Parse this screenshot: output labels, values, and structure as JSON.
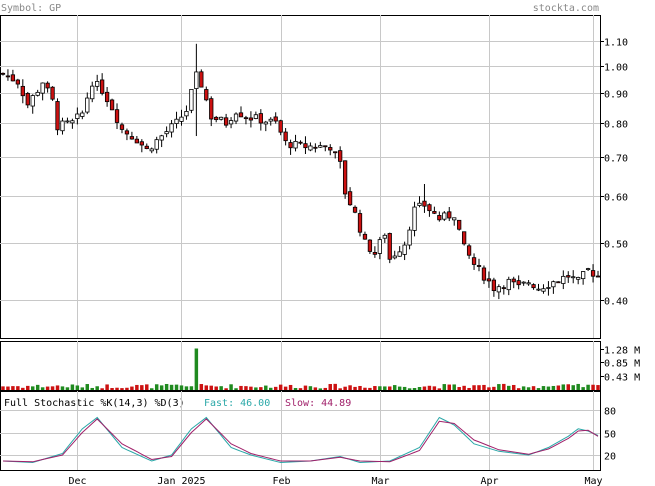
{
  "header": {
    "symbol_label": "Symbol: GP",
    "site": "stockta.com"
  },
  "colors": {
    "up": "#ffffff",
    "down": "#cc1111",
    "wick": "#000000",
    "grid": "#c8c8c8",
    "frame": "#000000",
    "vol_up": "#1f8a1f",
    "vol_down": "#cc1111",
    "fast": "#2aa8a8",
    "slow": "#a0206a",
    "header": "#888888"
  },
  "indicator": {
    "name_label": "Full Stochastic %K(14,3) %D(3)",
    "fast_label": "Fast: 46.00",
    "slow_label": "Slow: 44.89"
  },
  "chart_data": {
    "type": "candlestick",
    "price_axis": {
      "scale": "log",
      "ticks": [
        0.4,
        0.5,
        0.6,
        0.7,
        0.8,
        0.9,
        1.0,
        1.1
      ],
      "tick_labels": [
        "0.40",
        "0.50",
        "0.60",
        "0.70",
        "0.80",
        "0.90",
        "1.00",
        "1.10"
      ],
      "range": [
        0.345,
        1.22
      ]
    },
    "volume_axis": {
      "tick_labels": [
        "1.28 M",
        "0.85 M",
        "0.43 M"
      ],
      "ticks": [
        1.28,
        0.85,
        0.43
      ],
      "unit": "M",
      "max": 1.45
    },
    "stochastic_axis": {
      "tick_labels": [
        "80",
        "50",
        "20"
      ],
      "ticks": [
        80,
        50,
        20
      ],
      "range": [
        0,
        100
      ]
    },
    "month_labels": [
      "Dec",
      "Jan 2025",
      "Feb",
      "Mar",
      "Apr",
      "May"
    ],
    "month_index": [
      15,
      36,
      56,
      76,
      98,
      119
    ],
    "days": 120,
    "close_anchors": [
      [
        0,
        0.97
      ],
      [
        3,
        0.94
      ],
      [
        5,
        0.86
      ],
      [
        7,
        0.91
      ],
      [
        8,
        0.94
      ],
      [
        10,
        0.87
      ],
      [
        11,
        0.79
      ],
      [
        14,
        0.8
      ],
      [
        16,
        0.83
      ],
      [
        18,
        0.94
      ],
      [
        20,
        0.91
      ],
      [
        22,
        0.85
      ],
      [
        24,
        0.78
      ],
      [
        27,
        0.75
      ],
      [
        29,
        0.72
      ],
      [
        32,
        0.76
      ],
      [
        35,
        0.8
      ],
      [
        37,
        0.84
      ],
      [
        39,
        0.96
      ],
      [
        40,
        0.93
      ],
      [
        42,
        0.82
      ],
      [
        45,
        0.8
      ],
      [
        47,
        0.84
      ],
      [
        49,
        0.82
      ],
      [
        52,
        0.81
      ],
      [
        55,
        0.8
      ],
      [
        57,
        0.74
      ],
      [
        60,
        0.73
      ],
      [
        63,
        0.73
      ],
      [
        66,
        0.73
      ],
      [
        68,
        0.68
      ],
      [
        69,
        0.61
      ],
      [
        71,
        0.56
      ],
      [
        73,
        0.5
      ],
      [
        75,
        0.48
      ],
      [
        77,
        0.52
      ],
      [
        78,
        0.47
      ],
      [
        81,
        0.5
      ],
      [
        83,
        0.57
      ],
      [
        85,
        0.58
      ],
      [
        88,
        0.55
      ],
      [
        91,
        0.56
      ],
      [
        93,
        0.49
      ],
      [
        95,
        0.46
      ],
      [
        97,
        0.44
      ],
      [
        99,
        0.42
      ],
      [
        102,
        0.43
      ],
      [
        104,
        0.42
      ],
      [
        106,
        0.43
      ],
      [
        108,
        0.42
      ],
      [
        111,
        0.43
      ],
      [
        114,
        0.44
      ],
      [
        116,
        0.43
      ],
      [
        118,
        0.45
      ],
      [
        120,
        0.44
      ]
    ],
    "spikes": [
      {
        "day": 39,
        "high": 1.09,
        "low": 0.76,
        "volume": 1.28
      },
      {
        "day": 85,
        "high": 0.63
      }
    ],
    "stoch_fast_anchors": [
      [
        0,
        12
      ],
      [
        6,
        10
      ],
      [
        12,
        22
      ],
      [
        16,
        55
      ],
      [
        19,
        70
      ],
      [
        24,
        30
      ],
      [
        30,
        12
      ],
      [
        34,
        20
      ],
      [
        38,
        55
      ],
      [
        41,
        70
      ],
      [
        46,
        30
      ],
      [
        50,
        20
      ],
      [
        56,
        10
      ],
      [
        62,
        12
      ],
      [
        68,
        18
      ],
      [
        72,
        10
      ],
      [
        78,
        12
      ],
      [
        84,
        30
      ],
      [
        88,
        70
      ],
      [
        91,
        60
      ],
      [
        95,
        35
      ],
      [
        100,
        25
      ],
      [
        106,
        20
      ],
      [
        110,
        30
      ],
      [
        114,
        45
      ],
      [
        116,
        55
      ],
      [
        118,
        52
      ],
      [
        120,
        46
      ]
    ],
    "stoch_slow_anchors": [
      [
        0,
        12
      ],
      [
        6,
        11
      ],
      [
        12,
        20
      ],
      [
        16,
        50
      ],
      [
        19,
        68
      ],
      [
        24,
        35
      ],
      [
        30,
        14
      ],
      [
        34,
        18
      ],
      [
        38,
        50
      ],
      [
        41,
        68
      ],
      [
        46,
        35
      ],
      [
        50,
        22
      ],
      [
        56,
        12
      ],
      [
        62,
        12
      ],
      [
        68,
        17
      ],
      [
        72,
        12
      ],
      [
        78,
        11
      ],
      [
        84,
        26
      ],
      [
        88,
        65
      ],
      [
        91,
        62
      ],
      [
        95,
        40
      ],
      [
        100,
        27
      ],
      [
        106,
        21
      ],
      [
        110,
        28
      ],
      [
        114,
        42
      ],
      [
        116,
        52
      ],
      [
        118,
        53
      ],
      [
        120,
        45
      ]
    ]
  }
}
